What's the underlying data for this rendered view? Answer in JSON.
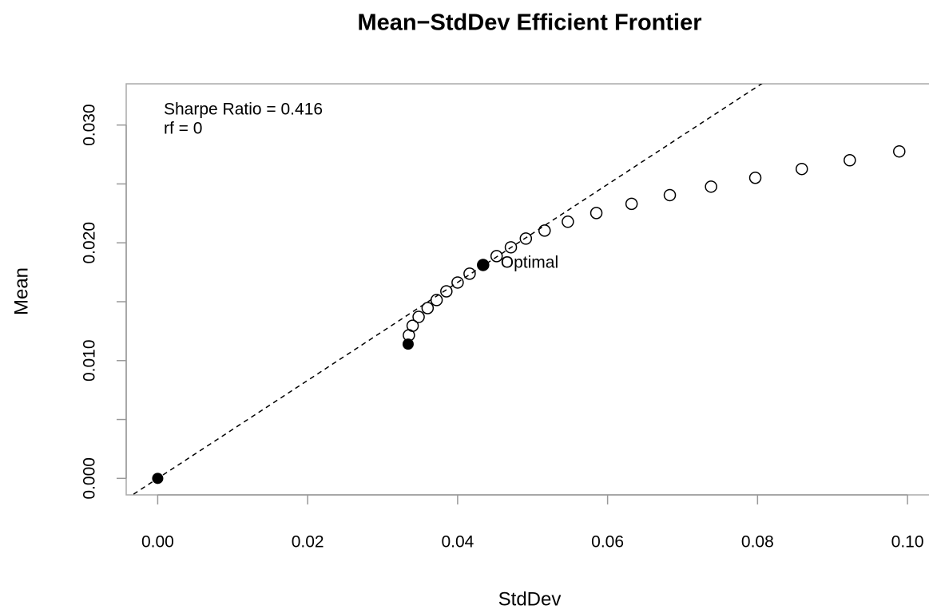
{
  "chart_data": {
    "type": "scatter",
    "title": "Mean−StdDev Efficient Frontier",
    "x_label": "StdDev",
    "y_label": "Mean",
    "xlim": [
      -0.0042,
      0.1034
    ],
    "ylim": [
      -0.0014,
      0.0335
    ],
    "xticks": [
      {
        "value": 0,
        "label": "0.00"
      },
      0.02,
      0.04,
      0.06,
      0.08,
      {
        "value": 0.1,
        "label": "0.10"
      }
    ],
    "yticks": [
      {
        "value": 0,
        "label": "0.000"
      },
      {
        "value": 0.01,
        "label": "0.010"
      },
      {
        "value": 0.02,
        "label": "0.020"
      },
      {
        "value": 0.03,
        "label": "0.030"
      }
    ],
    "y_minor_ticks": [
      0.005,
      0.015,
      0.025
    ],
    "frontier": {
      "color": "#000000",
      "x": [
        0.0335,
        0.034,
        0.0348,
        0.036,
        0.0372,
        0.0385,
        0.04,
        0.0416,
        0.0434,
        0.0452,
        0.0471,
        0.0491,
        0.0516,
        0.0547,
        0.0585,
        0.0632,
        0.0683,
        0.0738,
        0.0797,
        0.0859,
        0.0923,
        0.0989
      ],
      "y": [
        0.01215,
        0.01296,
        0.01371,
        0.01446,
        0.01514,
        0.01588,
        0.01663,
        0.01738,
        0.01812,
        0.01887,
        0.01962,
        0.02036,
        0.02104,
        0.02179,
        0.02253,
        0.02331,
        0.02405,
        0.02477,
        0.02552,
        0.02627,
        0.02701,
        0.02776
      ]
    },
    "points": {
      "color": "#000000",
      "x": [
        0.0334,
        0.0434,
        0
      ],
      "y": [
        0.0114,
        0.01812,
        0
      ]
    },
    "optimal_label": {
      "text": "Optimal",
      "color": "#0000ff"
    },
    "tangency_line": {
      "intercept": 0,
      "slope": 0.416
    },
    "annotations": [
      "Sharpe Ratio = 0.416",
      "rf = 0"
    ]
  }
}
